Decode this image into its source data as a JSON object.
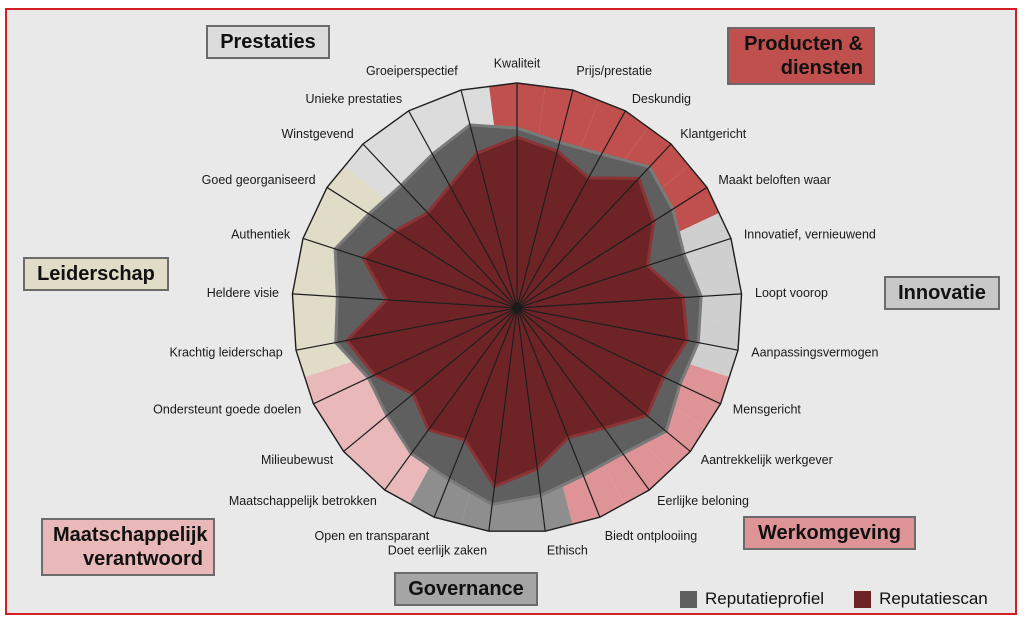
{
  "chart_data": {
    "type": "radar",
    "title": "",
    "axes": [
      "Kwaliteit",
      "Prijs/prestatie",
      "Deskundig",
      "Klantgericht",
      "Maakt beloften waar",
      "Innovatief, vernieuwend",
      "Loopt voorop",
      "Aanpassingsvermogen",
      "Mensgericht",
      "Aantrekkelijk werkgever",
      "Eerlijke beloning",
      "Biedt ontplooiing",
      "Ethisch",
      "Doet eerlijk zaken",
      "Open en transparant",
      "Maatschappelijk betrokken",
      "Milieubewust",
      "Ondersteunt goede doelen",
      "Krachtig leiderschap",
      "Heldere visie",
      "Authentiek",
      "Goed georganiseerd",
      "Winstgevend",
      "Unieke prestaties",
      "Groeiperspectief"
    ],
    "range": [
      0,
      1
    ],
    "series": [
      {
        "name": "Reputatieprofiel",
        "color": "#5f5f5f",
        "values": [
          0.8,
          0.76,
          0.78,
          0.86,
          0.82,
          0.78,
          0.82,
          0.82,
          0.8,
          0.86,
          0.8,
          0.8,
          0.84,
          0.88,
          0.82,
          0.8,
          0.75,
          0.73,
          0.82,
          0.8,
          0.85,
          0.78,
          0.75,
          0.78,
          0.84
        ]
      },
      {
        "name": "Reputatiescan",
        "color": "#6e2426",
        "values": [
          0.76,
          0.72,
          0.66,
          0.79,
          0.72,
          0.61,
          0.74,
          0.77,
          0.72,
          0.75,
          0.66,
          0.62,
          0.72,
          0.8,
          0.63,
          0.67,
          0.6,
          0.7,
          0.77,
          0.58,
          0.72,
          0.64,
          0.58,
          0.62,
          0.71
        ]
      }
    ],
    "categories": [
      {
        "name": "Producten & diensten",
        "line1": "Producten &",
        "line2": "diensten",
        "color": "#c0504d",
        "axes": [
          0,
          1,
          2,
          3,
          4
        ]
      },
      {
        "name": "Innovatie",
        "line1": "Innovatie",
        "line2": "",
        "color": "#cfcfcf",
        "axes": [
          5,
          6,
          7
        ]
      },
      {
        "name": "Werkomgeving",
        "line1": "Werkomgeving",
        "line2": "",
        "color": "#de9496",
        "axes": [
          8,
          9,
          10,
          11
        ]
      },
      {
        "name": "Governance",
        "line1": "Governance",
        "line2": "",
        "color": "#8e8e8e",
        "axes": [
          12,
          13,
          14
        ]
      },
      {
        "name": "Maatschappelijk verantwoord",
        "line1": "Maatschappelijk",
        "line2": "verantwoord",
        "color": "#e9b9b9",
        "axes": [
          15,
          16,
          17
        ]
      },
      {
        "name": "Leiderschap",
        "line1": "Leiderschap",
        "line2": "",
        "color": "#e0dcc8",
        "axes": [
          18,
          19,
          20,
          21
        ]
      },
      {
        "name": "Prestaties",
        "line1": "Prestaties",
        "line2": "",
        "color": "#dcdcdc",
        "axes": [
          22,
          23,
          24
        ]
      }
    ],
    "legend": {
      "placement": "bottom-right",
      "items": [
        "Reputatieprofiel",
        "Reputatiescan"
      ]
    }
  }
}
